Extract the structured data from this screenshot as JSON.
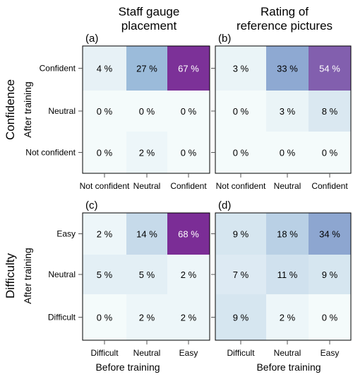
{
  "column_titles": [
    [
      "Staff gauge",
      "placement"
    ],
    [
      "Rating of",
      "reference pictures"
    ]
  ],
  "row_titles": [
    "Confidence",
    "Difficulty"
  ],
  "x_axis_title": "Before training",
  "y_axis_title": "After training",
  "colors": {
    "scale_low": "#f4fbfb",
    "scale_mid": "#8fb2d6",
    "scale_high": "#7b2d96",
    "frame": "#000000",
    "tick": "#555555"
  },
  "chart_data": [
    {
      "type": "heatmap",
      "panel_label": "(a)",
      "x_categories": [
        "Not confident",
        "Neutral",
        "Confident"
      ],
      "y_categories": [
        "Confident",
        "Neutral",
        "Not confident"
      ],
      "values": [
        [
          4,
          27,
          67
        ],
        [
          0,
          0,
          0
        ],
        [
          0,
          2,
          0
        ]
      ],
      "value_unit": "%"
    },
    {
      "type": "heatmap",
      "panel_label": "(b)",
      "x_categories": [
        "Not confident",
        "Neutral",
        "Confident"
      ],
      "y_categories": [
        "Confident",
        "Neutral",
        "Not confident"
      ],
      "values": [
        [
          3,
          33,
          54
        ],
        [
          0,
          3,
          8
        ],
        [
          0,
          0,
          0
        ]
      ],
      "value_unit": "%"
    },
    {
      "type": "heatmap",
      "panel_label": "(c)",
      "x_categories": [
        "Difficult",
        "Neutral",
        "Easy"
      ],
      "y_categories": [
        "Easy",
        "Neutral",
        "Difficult"
      ],
      "values": [
        [
          2,
          14,
          68
        ],
        [
          5,
          5,
          2
        ],
        [
          0,
          2,
          2
        ]
      ],
      "value_unit": "%"
    },
    {
      "type": "heatmap",
      "panel_label": "(d)",
      "x_categories": [
        "Difficult",
        "Neutral",
        "Easy"
      ],
      "y_categories": [
        "Easy",
        "Neutral",
        "Difficult"
      ],
      "values": [
        [
          9,
          18,
          34
        ],
        [
          7,
          11,
          9
        ],
        [
          9,
          2,
          0
        ]
      ],
      "value_unit": "%"
    }
  ]
}
